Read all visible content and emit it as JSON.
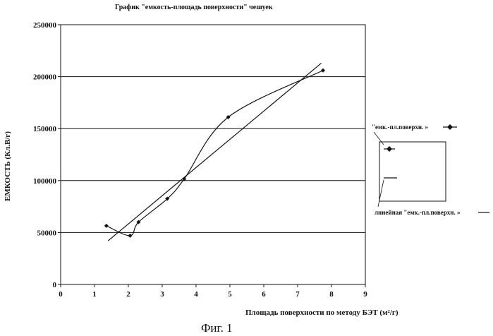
{
  "chart_data": {
    "type": "scatter",
    "title": "График \"емкость-площадь поверхности\" чешуек",
    "xlabel": "Площадь поверхности по методу БЭТ (м²/г)",
    "ylabel": "ЕМКОСТЬ (Кл.В/г)",
    "xlim": [
      0,
      9
    ],
    "ylim": [
      0,
      250000
    ],
    "x_ticks": [
      "0",
      "1",
      "2",
      "3",
      "4",
      "5",
      "6",
      "7",
      "8",
      "9"
    ],
    "y_ticks": [
      "0",
      "50000",
      "100000",
      "150000",
      "200000",
      "250000"
    ],
    "grid": "horizontal",
    "series": [
      {
        "name": "\"емк.-пл.поверхн. »",
        "style": "points-with-smooth-line",
        "x": [
          1.35,
          2.05,
          2.3,
          3.15,
          3.65,
          4.95,
          7.75
        ],
        "y": [
          56500,
          47000,
          60000,
          82500,
          101500,
          161000,
          206000
        ]
      },
      {
        "name": "линейная \"емк.-пл.поверхн. »",
        "style": "line",
        "x": [
          1.4,
          7.7
        ],
        "y": [
          42000,
          213000
        ]
      }
    ],
    "legend": {
      "position": "right",
      "entries": [
        "\"емк.-пл.поверхн. »",
        "линейная \"емк.-пл.поверхн. »"
      ]
    },
    "caption": "Фиг. 1"
  },
  "colors": {
    "ink": "#111111",
    "background": "#ffffff"
  }
}
